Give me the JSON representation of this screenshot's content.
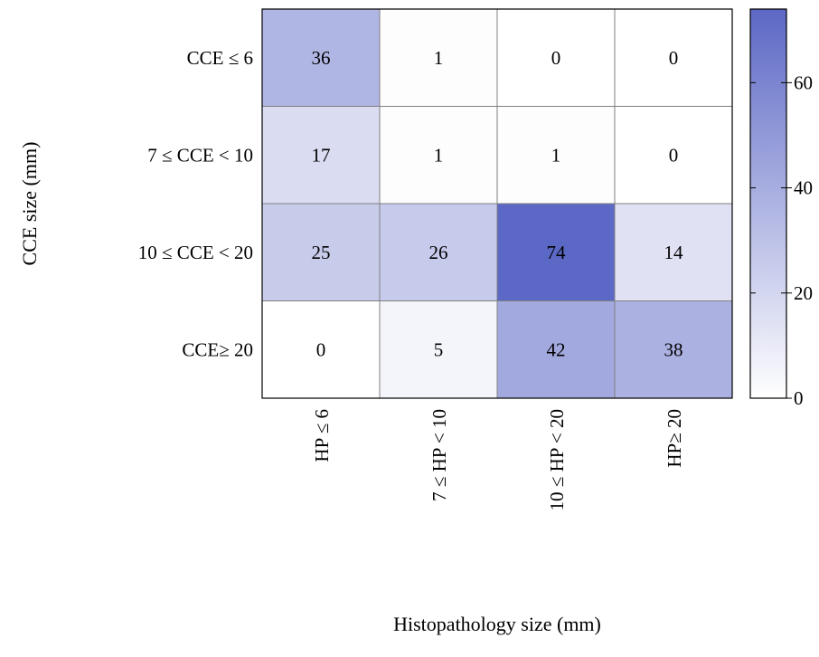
{
  "chart_data": {
    "type": "heatmap",
    "title": "",
    "xlabel": "Histopathology size (mm)",
    "ylabel": "CCE size (mm)",
    "x_categories": [
      "HP ≤ 6",
      "7 ≤ HP < 10",
      "10 ≤ HP < 20",
      "HP≥ 20"
    ],
    "y_categories": [
      "CCE ≤ 6",
      "7 ≤ CCE < 10",
      "10 ≤ CCE < 20",
      "CCE≥ 20"
    ],
    "values": [
      [
        36,
        1,
        0,
        0
      ],
      [
        17,
        1,
        1,
        0
      ],
      [
        25,
        26,
        74,
        14
      ],
      [
        0,
        5,
        42,
        38
      ]
    ],
    "colorbar": {
      "range": [
        0,
        74
      ],
      "ticks": [
        0,
        20,
        40,
        60
      ],
      "color_low": "#ffffff",
      "color_high": "#5c68c5"
    },
    "cell_border_color": "#808080",
    "grid": false
  }
}
